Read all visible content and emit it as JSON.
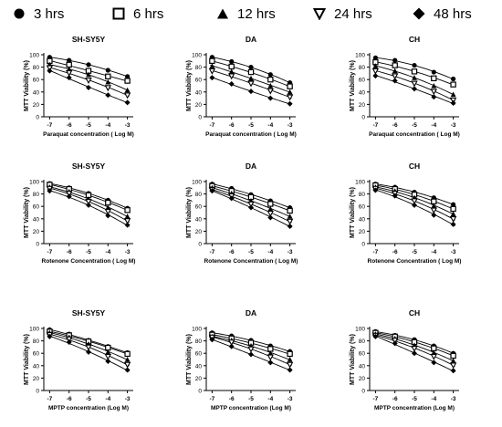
{
  "legend": [
    {
      "label": "3 hrs",
      "marker": "circle"
    },
    {
      "label": "6 hrs",
      "marker": "open-square"
    },
    {
      "label": "12 hrs",
      "marker": "triangle-up"
    },
    {
      "label": "24 hrs",
      "marker": "open-triangle-down"
    },
    {
      "label": "48 hrs",
      "marker": "diamond"
    }
  ],
  "chart_data": [
    {
      "type": "scatter",
      "title": "SH-SY5Y",
      "xlabel": "Paraquat concentration ( Log M)",
      "ylabel": "MTT Viability (%)",
      "x": [
        -7,
        -6,
        -5,
        -4,
        -3
      ],
      "xlim": [
        -7.3,
        -2.7
      ],
      "ylim": [
        0,
        100
      ],
      "xticks": [
        -7,
        -6,
        -5,
        -4,
        -3
      ],
      "yticks": [
        0,
        20,
        40,
        60,
        80,
        100
      ],
      "series": [
        {
          "name": "3 hrs",
          "values": [
            96,
            91,
            84,
            75,
            65
          ]
        },
        {
          "name": "6 hrs",
          "values": [
            90,
            84,
            74,
            65,
            58
          ]
        },
        {
          "name": "12 hrs",
          "values": [
            84,
            77,
            68,
            56,
            43
          ]
        },
        {
          "name": "24 hrs",
          "values": [
            79,
            71,
            59,
            47,
            35
          ]
        },
        {
          "name": "48 hrs",
          "values": [
            74,
            63,
            47,
            35,
            23
          ]
        }
      ]
    },
    {
      "type": "scatter",
      "title": "DA",
      "xlabel": "Paraquat concentration ( Log M)",
      "ylabel": "MTT Viability (%)",
      "x": [
        -7,
        -6,
        -5,
        -4,
        -3
      ],
      "xlim": [
        -7.3,
        -2.7
      ],
      "ylim": [
        0,
        100
      ],
      "xticks": [
        -7,
        -6,
        -5,
        -4,
        -3
      ],
      "yticks": [
        0,
        20,
        40,
        60,
        80,
        100
      ],
      "series": [
        {
          "name": "3 hrs",
          "values": [
            96,
            89,
            80,
            68,
            55
          ]
        },
        {
          "name": "6 hrs",
          "values": [
            90,
            81,
            72,
            60,
            49
          ]
        },
        {
          "name": "12 hrs",
          "values": [
            82,
            73,
            62,
            50,
            40
          ]
        },
        {
          "name": "24 hrs",
          "values": [
            74,
            66,
            54,
            42,
            32
          ]
        },
        {
          "name": "48 hrs",
          "values": [
            63,
            53,
            41,
            30,
            21
          ]
        }
      ]
    },
    {
      "type": "scatter",
      "title": "CH",
      "xlabel": "Paraquat concentration ( Log M)",
      "ylabel": "MTT Viability (%)",
      "x": [
        -7,
        -6,
        -5,
        -4,
        -3
      ],
      "xlim": [
        -7.3,
        -2.7
      ],
      "ylim": [
        0,
        100
      ],
      "xticks": [
        -7,
        -6,
        -5,
        -4,
        -3
      ],
      "yticks": [
        0,
        20,
        40,
        60,
        80,
        100
      ],
      "series": [
        {
          "name": "3 hrs",
          "values": [
            95,
            91,
            83,
            72,
            61
          ]
        },
        {
          "name": "6 hrs",
          "values": [
            88,
            83,
            73,
            62,
            52
          ]
        },
        {
          "name": "12 hrs",
          "values": [
            82,
            74,
            63,
            50,
            36
          ]
        },
        {
          "name": "24 hrs",
          "values": [
            74,
            66,
            54,
            41,
            27
          ]
        },
        {
          "name": "48 hrs",
          "values": [
            66,
            58,
            45,
            32,
            22
          ]
        }
      ]
    },
    {
      "type": "scatter",
      "title": "SH-SY5Y",
      "xlabel": "Rotenone Concentration ( Log M)",
      "ylabel": "MTT Viability (%)",
      "x": [
        -7,
        -6,
        -5,
        -4,
        -3
      ],
      "xlim": [
        -7.3,
        -2.7
      ],
      "ylim": [
        0,
        100
      ],
      "xticks": [
        -7,
        -6,
        -5,
        -4,
        -3
      ],
      "yticks": [
        0,
        20,
        40,
        60,
        80,
        100
      ],
      "series": [
        {
          "name": "3 hrs",
          "values": [
            97,
            90,
            81,
            70,
            57
          ]
        },
        {
          "name": "6 hrs",
          "values": [
            95,
            88,
            78,
            66,
            54
          ]
        },
        {
          "name": "12 hrs",
          "values": [
            91,
            84,
            72,
            58,
            44
          ]
        },
        {
          "name": "24 hrs",
          "values": [
            89,
            81,
            68,
            52,
            37
          ]
        },
        {
          "name": "48 hrs",
          "values": [
            85,
            76,
            62,
            45,
            30
          ]
        }
      ]
    },
    {
      "type": "scatter",
      "title": "DA",
      "xlabel": "Rotenone Concentration ( Log M)",
      "ylabel": "MTT Viability (%)",
      "x": [
        -7,
        -6,
        -5,
        -4,
        -3
      ],
      "xlim": [
        -7.3,
        -2.7
      ],
      "ylim": [
        0,
        100
      ],
      "xticks": [
        -7,
        -6,
        -5,
        -4,
        -3
      ],
      "yticks": [
        0,
        20,
        40,
        60,
        80,
        100
      ],
      "series": [
        {
          "name": "3 hrs",
          "values": [
            96,
            89,
            79,
            69,
            58
          ]
        },
        {
          "name": "6 hrs",
          "values": [
            93,
            85,
            75,
            64,
            53
          ]
        },
        {
          "name": "12 hrs",
          "values": [
            90,
            81,
            69,
            56,
            44
          ]
        },
        {
          "name": "24 hrs",
          "values": [
            87,
            77,
            64,
            49,
            36
          ]
        },
        {
          "name": "48 hrs",
          "values": [
            85,
            73,
            58,
            42,
            28
          ]
        }
      ]
    },
    {
      "type": "scatter",
      "title": "CH",
      "xlabel": "Rotenone Concentration ( Log M)",
      "ylabel": "MTT Viability (%)",
      "x": [
        -7,
        -6,
        -5,
        -4,
        -3
      ],
      "xlim": [
        -7.3,
        -2.7
      ],
      "ylim": [
        0,
        100
      ],
      "xticks": [
        -7,
        -6,
        -5,
        -4,
        -3
      ],
      "yticks": [
        0,
        20,
        40,
        60,
        80,
        100
      ],
      "series": [
        {
          "name": "3 hrs",
          "values": [
            96,
            91,
            83,
            74,
            63
          ]
        },
        {
          "name": "6 hrs",
          "values": [
            94,
            88,
            79,
            68,
            56
          ]
        },
        {
          "name": "12 hrs",
          "values": [
            91,
            85,
            74,
            61,
            48
          ]
        },
        {
          "name": "24 hrs",
          "values": [
            89,
            81,
            69,
            54,
            40
          ]
        },
        {
          "name": "48 hrs",
          "values": [
            86,
            77,
            62,
            46,
            31
          ]
        }
      ]
    },
    {
      "type": "scatter",
      "title": "SH-SY5Y",
      "xlabel": "MPTP concentration (Log M)",
      "ylabel": "MTT Viability (%)",
      "x": [
        -7,
        -6,
        -5,
        -4,
        -3
      ],
      "xlim": [
        -7.3,
        -2.7
      ],
      "ylim": [
        0,
        100
      ],
      "xticks": [
        -7,
        -6,
        -5,
        -4,
        -3
      ],
      "yticks": [
        0,
        20,
        40,
        60,
        80,
        100
      ],
      "series": [
        {
          "name": "3 hrs",
          "values": [
            98,
            91,
            81,
            71,
            61
          ]
        },
        {
          "name": "6 hrs",
          "values": [
            95,
            89,
            79,
            69,
            59
          ]
        },
        {
          "name": "12 hrs",
          "values": [
            93,
            86,
            75,
            62,
            50
          ]
        },
        {
          "name": "24 hrs",
          "values": [
            90,
            83,
            70,
            55,
            42
          ]
        },
        {
          "name": "48 hrs",
          "values": [
            87,
            78,
            62,
            47,
            33
          ]
        }
      ]
    },
    {
      "type": "scatter",
      "title": "DA",
      "xlabel": "MPTP concentration (Log M)",
      "ylabel": "MTT Viability (%)",
      "x": [
        -7,
        -6,
        -5,
        -4,
        -3
      ],
      "xlim": [
        -7.3,
        -2.7
      ],
      "ylim": [
        0,
        100
      ],
      "xticks": [
        -7,
        -6,
        -5,
        -4,
        -3
      ],
      "yticks": [
        0,
        20,
        40,
        60,
        80,
        100
      ],
      "series": [
        {
          "name": "3 hrs",
          "values": [
            93,
            88,
            81,
            72,
            63
          ]
        },
        {
          "name": "6 hrs",
          "values": [
            90,
            84,
            77,
            67,
            59
          ]
        },
        {
          "name": "12 hrs",
          "values": [
            87,
            81,
            72,
            60,
            50
          ]
        },
        {
          "name": "24 hrs",
          "values": [
            86,
            78,
            67,
            54,
            42
          ]
        },
        {
          "name": "48 hrs",
          "values": [
            82,
            71,
            58,
            45,
            33
          ]
        }
      ]
    },
    {
      "type": "scatter",
      "title": "CH",
      "xlabel": "MPTP concentration (Log M)",
      "ylabel": "MTT Viability (%)",
      "x": [
        -7,
        -6,
        -5,
        -4,
        -3
      ],
      "xlim": [
        -7.3,
        -2.7
      ],
      "ylim": [
        0,
        100
      ],
      "xticks": [
        -7,
        -6,
        -5,
        -4,
        -3
      ],
      "yticks": [
        0,
        20,
        40,
        60,
        80,
        100
      ],
      "series": [
        {
          "name": "3 hrs",
          "values": [
            95,
            89,
            82,
            72,
            60
          ]
        },
        {
          "name": "6 hrs",
          "values": [
            93,
            87,
            78,
            68,
            56
          ]
        },
        {
          "name": "12 hrs",
          "values": [
            91,
            84,
            73,
            61,
            48
          ]
        },
        {
          "name": "24 hrs",
          "values": [
            89,
            81,
            68,
            55,
            41
          ]
        },
        {
          "name": "48 hrs",
          "values": [
            87,
            76,
            60,
            45,
            32
          ]
        }
      ]
    }
  ]
}
